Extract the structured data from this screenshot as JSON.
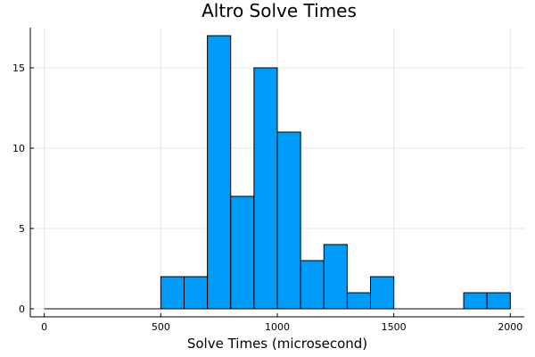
{
  "chart_data": {
    "type": "bar",
    "title": "Altro Solve Times",
    "xlabel": "Solve Times (microsecond)",
    "ylabel": "",
    "bar_color": "#009af9",
    "bar_edge_color": "#000000",
    "grid": true,
    "legend": "none",
    "xlim": [
      -60,
      2060
    ],
    "ylim": [
      -0.5,
      17.5
    ],
    "xticks": [
      0,
      500,
      1000,
      1500,
      2000
    ],
    "yticks": [
      0,
      5,
      10,
      15
    ],
    "bin_width": 100,
    "bins": [
      {
        "start": 0,
        "end": 100,
        "count": 0
      },
      {
        "start": 100,
        "end": 200,
        "count": 0
      },
      {
        "start": 200,
        "end": 300,
        "count": 0
      },
      {
        "start": 300,
        "end": 400,
        "count": 0
      },
      {
        "start": 400,
        "end": 500,
        "count": 0
      },
      {
        "start": 500,
        "end": 600,
        "count": 2
      },
      {
        "start": 600,
        "end": 700,
        "count": 2
      },
      {
        "start": 700,
        "end": 800,
        "count": 17
      },
      {
        "start": 800,
        "end": 900,
        "count": 7
      },
      {
        "start": 900,
        "end": 1000,
        "count": 15
      },
      {
        "start": 1000,
        "end": 1100,
        "count": 11
      },
      {
        "start": 1100,
        "end": 1200,
        "count": 3
      },
      {
        "start": 1200,
        "end": 1300,
        "count": 4
      },
      {
        "start": 1300,
        "end": 1400,
        "count": 1
      },
      {
        "start": 1400,
        "end": 1500,
        "count": 2
      },
      {
        "start": 1500,
        "end": 1600,
        "count": 0
      },
      {
        "start": 1600,
        "end": 1700,
        "count": 0
      },
      {
        "start": 1700,
        "end": 1800,
        "count": 0
      },
      {
        "start": 1800,
        "end": 1900,
        "count": 1
      },
      {
        "start": 1900,
        "end": 2000,
        "count": 1
      }
    ]
  }
}
